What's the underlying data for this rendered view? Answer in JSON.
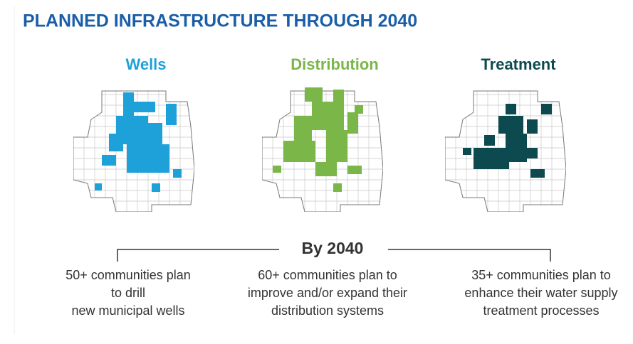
{
  "header": {
    "title": "PLANNED INFRASTRUCTURE THROUGH 2040"
  },
  "center_label": "By 2040",
  "panels": [
    {
      "label": "Wells",
      "color": "#1ea0d8",
      "description": [
        "50+ communities plan",
        "to drill",
        "new municipal wells"
      ]
    },
    {
      "label": "Distribution",
      "color": "#7ab648",
      "description": [
        "60+ communities plan to",
        "improve and/or expand their",
        "distribution systems"
      ]
    },
    {
      "label": "Treatment",
      "color": "#0d4a4f",
      "description": [
        "35+ communities plan to",
        "enhance their water supply",
        "treatment processes"
      ]
    }
  ]
}
